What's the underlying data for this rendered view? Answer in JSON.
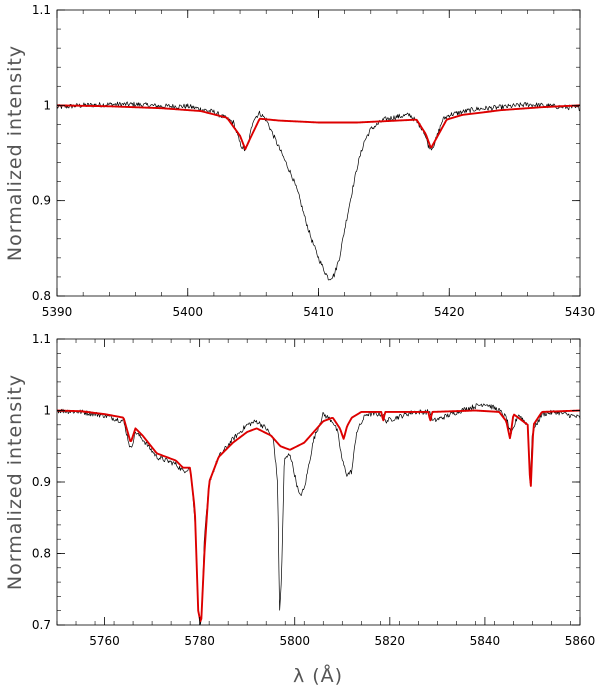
{
  "chart_data": [
    {
      "type": "line",
      "panel": "top",
      "ylabel": "Normalized intensity",
      "xlabel": "",
      "xlim": [
        5390,
        5430
      ],
      "ylim": [
        0.8,
        1.1
      ],
      "x_ticks": [
        "5390",
        "5400",
        "5410",
        "5420",
        "5430"
      ],
      "y_ticks": [
        "0.8",
        "0.9",
        "1",
        "1.1"
      ],
      "grid": false,
      "series": [
        {
          "color": "#000000",
          "style": "thin noisy",
          "x": [
            5390,
            5392,
            5394,
            5396,
            5398,
            5400,
            5402,
            5403.5,
            5404,
            5404.3,
            5404.6,
            5405,
            5405.5,
            5406,
            5406.5,
            5407,
            5407.5,
            5408,
            5408.5,
            5409,
            5409.5,
            5410,
            5410.5,
            5410.8,
            5411.2,
            5411.6,
            5412,
            5412.5,
            5413,
            5413.5,
            5414,
            5414.5,
            5415,
            5416,
            5417,
            5418,
            5418.4,
            5418.7,
            5419,
            5419.5,
            5420,
            5422,
            5424,
            5426,
            5428,
            5430
          ],
          "y": [
            0.998,
            1.0,
            1.001,
            1.001,
            0.999,
            0.999,
            0.993,
            0.982,
            0.96,
            0.953,
            0.957,
            0.985,
            0.992,
            0.985,
            0.97,
            0.955,
            0.94,
            0.925,
            0.905,
            0.88,
            0.858,
            0.84,
            0.825,
            0.818,
            0.822,
            0.84,
            0.87,
            0.905,
            0.938,
            0.962,
            0.975,
            0.98,
            0.985,
            0.988,
            0.99,
            0.975,
            0.958,
            0.955,
            0.965,
            0.985,
            0.99,
            0.996,
            0.998,
            1.001,
            0.999,
            0.997
          ]
        },
        {
          "color": "#dd0000",
          "style": "thick model",
          "x": [
            5390,
            5394,
            5398,
            5401,
            5403,
            5404,
            5404.4,
            5404.8,
            5405.5,
            5407,
            5410,
            5413,
            5416,
            5417.5,
            5418.2,
            5418.6,
            5419,
            5419.8,
            5421,
            5424,
            5427,
            5430
          ],
          "y": [
            1.0,
            0.999,
            0.997,
            0.994,
            0.987,
            0.968,
            0.954,
            0.966,
            0.986,
            0.984,
            0.982,
            0.982,
            0.984,
            0.985,
            0.97,
            0.955,
            0.965,
            0.985,
            0.99,
            0.995,
            0.998,
            1.0
          ]
        }
      ]
    },
    {
      "type": "line",
      "panel": "bottom",
      "ylabel": "Normalized intensity",
      "xlabel": "λ (Å)",
      "xlim": [
        5750,
        5860
      ],
      "ylim": [
        0.7,
        1.1
      ],
      "x_ticks": [
        "5760",
        "5780",
        "5800",
        "5820",
        "5840",
        "5860"
      ],
      "y_ticks": [
        "0.7",
        "0.8",
        "0.9",
        "1",
        "1.1"
      ],
      "grid": false,
      "series": [
        {
          "color": "#000000",
          "style": "thin noisy",
          "x": [
            5750,
            5755,
            5760,
            5764,
            5765.5,
            5766.5,
            5768,
            5771,
            5773,
            5775,
            5776.5,
            5778,
            5779,
            5779.7,
            5780.3,
            5781,
            5782,
            5784,
            5787,
            5790,
            5792,
            5794,
            5795.5,
            5796.4,
            5796.8,
            5797.2,
            5797.8,
            5799,
            5800,
            5801,
            5802,
            5804,
            5806,
            5808,
            5809,
            5810,
            5811,
            5812,
            5813,
            5815,
            5818.5,
            5819,
            5825,
            5828.5,
            5829,
            5835,
            5840,
            5843,
            5844.5,
            5845.5,
            5847,
            5849,
            5849.5,
            5850,
            5852,
            5855,
            5860
          ],
          "y": [
            1.0,
            0.998,
            0.993,
            0.985,
            0.945,
            0.97,
            0.96,
            0.935,
            0.93,
            0.925,
            0.915,
            0.92,
            0.85,
            0.72,
            0.7,
            0.82,
            0.9,
            0.935,
            0.96,
            0.98,
            0.985,
            0.975,
            0.96,
            0.9,
            0.72,
            0.76,
            0.93,
            0.94,
            0.91,
            0.88,
            0.89,
            0.96,
            0.995,
            0.985,
            0.97,
            0.93,
            0.91,
            0.915,
            0.97,
            0.995,
            0.995,
            0.985,
            0.998,
            0.998,
            0.985,
            1.0,
            1.01,
            1.0,
            0.99,
            0.965,
            0.995,
            0.98,
            0.895,
            0.97,
            0.995,
            0.998,
            0.99
          ]
        },
        {
          "color": "#dd0000",
          "style": "thick model",
          "x": [
            5750,
            5755,
            5760,
            5764,
            5765.5,
            5766.5,
            5768,
            5771,
            5773,
            5775,
            5776.5,
            5778,
            5779,
            5779.7,
            5780.3,
            5781,
            5782,
            5784,
            5787,
            5790,
            5792,
            5795,
            5797,
            5799,
            5802,
            5806,
            5808,
            5809.5,
            5810.3,
            5811,
            5812,
            5814,
            5818.2,
            5818.6,
            5819,
            5828.1,
            5828.5,
            5828.9,
            5838,
            5843,
            5844.5,
            5845.3,
            5846,
            5849,
            5849.6,
            5850.2,
            5852,
            5860
          ],
          "y": [
            1.0,
            0.999,
            0.995,
            0.99,
            0.955,
            0.975,
            0.965,
            0.94,
            0.935,
            0.93,
            0.92,
            0.92,
            0.86,
            0.72,
            0.7,
            0.8,
            0.9,
            0.935,
            0.955,
            0.97,
            0.975,
            0.965,
            0.95,
            0.945,
            0.955,
            0.985,
            0.99,
            0.975,
            0.96,
            0.978,
            0.99,
            0.998,
            0.998,
            0.985,
            0.998,
            0.998,
            0.985,
            0.998,
            1.0,
            0.998,
            0.985,
            0.96,
            0.995,
            0.98,
            0.885,
            0.98,
            0.998,
            1.0
          ]
        }
      ]
    }
  ]
}
